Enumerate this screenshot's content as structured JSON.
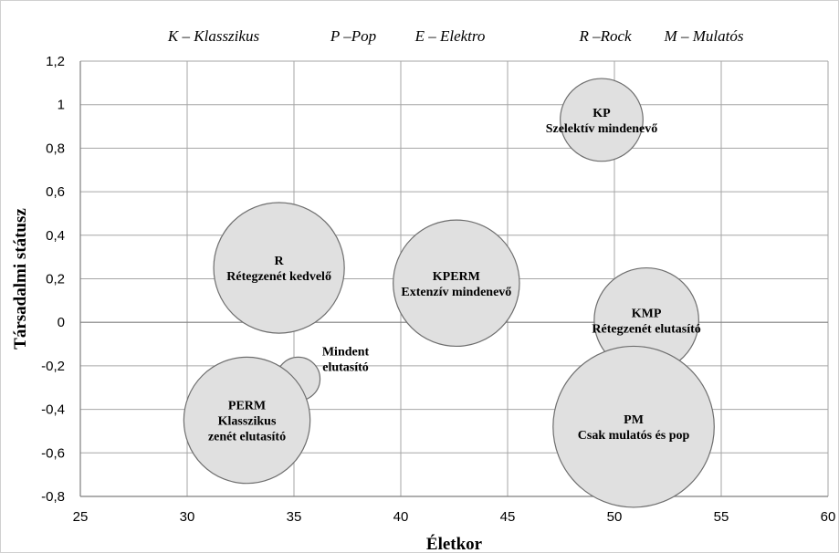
{
  "chart_data": {
    "type": "bubble",
    "xlabel": "Életkor",
    "ylabel": "Társadalmi státusz",
    "xlim": [
      25,
      60
    ],
    "ylim": [
      -0.8,
      1.2
    ],
    "x_ticks": [
      25,
      30,
      35,
      40,
      45,
      50,
      55,
      60
    ],
    "y_ticks": [
      -0.8,
      -0.6,
      -0.4,
      -0.2,
      0,
      0.2,
      0.4,
      0.6,
      0.8,
      1,
      1.2
    ],
    "y_tick_labels": [
      "-0,8",
      "-0,6",
      "-0,4",
      "-0,2",
      "0",
      "0,2",
      "0,4",
      "0,6",
      "0,8",
      "1",
      "1,2"
    ],
    "grid": true,
    "legend": [
      {
        "text": "K – Klasszikus"
      },
      {
        "text": "P –Pop"
      },
      {
        "text": "E – Elektro"
      },
      {
        "text": "R –Rock"
      },
      {
        "text": "M – Mulatós"
      }
    ],
    "bubbles": [
      {
        "x": 49.4,
        "y": 0.93,
        "r": 0.19,
        "lines": [
          "KP",
          "Szelektív mindenevő"
        ],
        "label_pos": "inside"
      },
      {
        "x": 34.3,
        "y": 0.25,
        "r": 0.3,
        "lines": [
          "R",
          "Rétegzenét kedvelő"
        ],
        "label_pos": "inside"
      },
      {
        "x": 42.6,
        "y": 0.18,
        "r": 0.29,
        "lines": [
          "KPERM",
          "Extenzív mindenevő"
        ],
        "label_pos": "inside"
      },
      {
        "x": 51.5,
        "y": 0.01,
        "r": 0.24,
        "lines": [
          "KMP",
          "Rétegzenét elutasító"
        ],
        "label_pos": "inside"
      },
      {
        "x": 35.2,
        "y": -0.26,
        "r": 0.1,
        "lines": [
          "Mindent",
          "elutasító"
        ],
        "label_pos": "right"
      },
      {
        "x": 32.8,
        "y": -0.45,
        "r": 0.29,
        "lines": [
          "PERM",
          "Klasszikus",
          "zenét elutasító"
        ],
        "label_pos": "inside"
      },
      {
        "x": 50.9,
        "y": -0.48,
        "r": 0.37,
        "lines": [
          "PM",
          "Csak mulatós és pop"
        ],
        "label_pos": "inside"
      }
    ]
  }
}
